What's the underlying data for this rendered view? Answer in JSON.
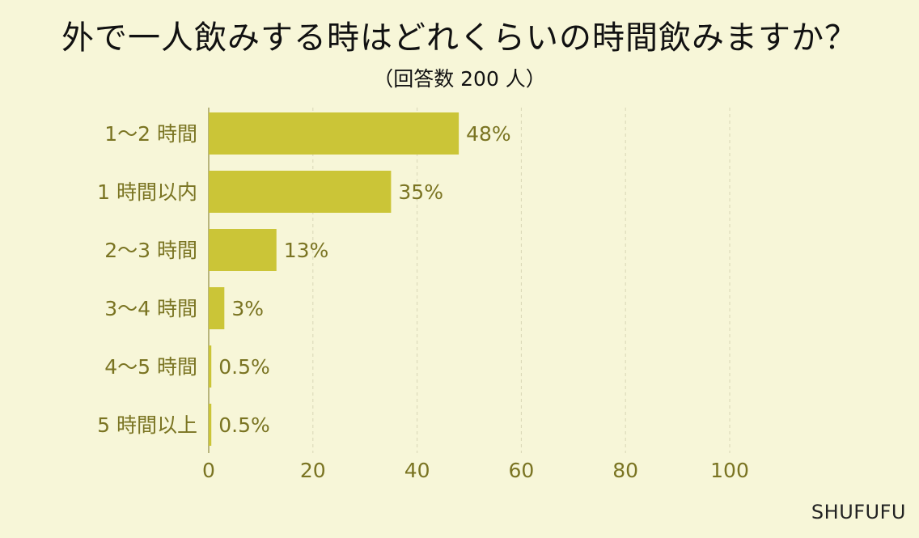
{
  "title": "外で一人飲みする時はどれくらいの時間飲みますか？",
  "subtitle": "（回答数 200 人）",
  "brand": "SHUFUFU",
  "colors": {
    "bar": "#cbc537",
    "label": "#7a7422",
    "background": "#f7f6d8"
  },
  "chart_data": {
    "type": "bar",
    "orientation": "horizontal",
    "title": "外で一人飲みする時はどれくらいの時間飲みますか？",
    "subtitle": "（回答数 200 人）",
    "categories": [
      "1～2 時間",
      "1 時間以内",
      "2～3 時間",
      "3～4 時間",
      "4～5 時間",
      "5 時間以上"
    ],
    "values": [
      48,
      35,
      13,
      3,
      0.5,
      0.5
    ],
    "value_labels": [
      "48%",
      "35%",
      "13%",
      "3%",
      "0.5%",
      "0.5%"
    ],
    "x_ticks": [
      "0",
      "20",
      "40",
      "60",
      "80",
      "100"
    ],
    "xlim": [
      0,
      100
    ],
    "grid": true
  }
}
